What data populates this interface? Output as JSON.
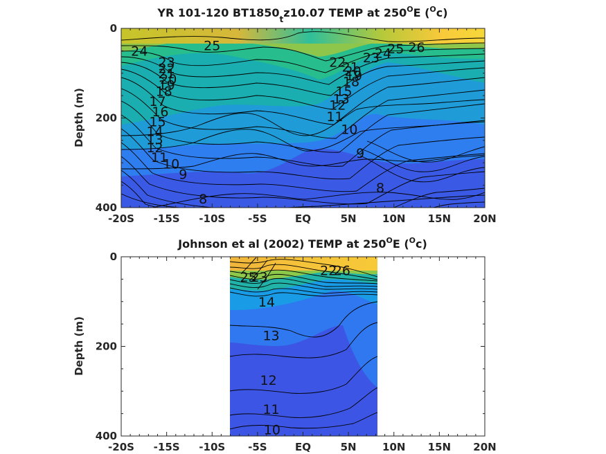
{
  "chart_data": [
    {
      "type": "contour",
      "title_main": "YR 101-120 BT1850",
      "title_sub": "t",
      "title_rest": "z10.07 TEMP at 250",
      "title_deg": "O",
      "title_end": "E (",
      "title_deg2": "O",
      "title_close": "c)",
      "ylabel": "Depth (m)",
      "xlabel": "",
      "x_ticks": [
        "-20S",
        "-15S",
        "-10S",
        "-5S",
        "EQ",
        "5N",
        "10N",
        "15N",
        "20N"
      ],
      "x_tick_values": [
        -20,
        -15,
        -10,
        -5,
        0,
        5,
        10,
        15,
        20
      ],
      "y_ticks": [
        "0",
        "200",
        "400"
      ],
      "y_tick_values": [
        0,
        200,
        400
      ],
      "xlim": [
        -20,
        20
      ],
      "ylim": [
        0,
        400
      ],
      "data_extent": [
        -20,
        20
      ],
      "contour_labels": [
        {
          "text": "25",
          "lat": -10,
          "depth": 38
        },
        {
          "text": "24",
          "lat": -18,
          "depth": 50
        },
        {
          "text": "23",
          "lat": -15,
          "depth": 75
        },
        {
          "text": "22",
          "lat": -15,
          "depth": 89
        },
        {
          "text": "21",
          "lat": -15,
          "depth": 100
        },
        {
          "text": "20",
          "lat": -14.8,
          "depth": 113
        },
        {
          "text": "19",
          "lat": -15,
          "depth": 126
        },
        {
          "text": "18",
          "lat": -15.3,
          "depth": 140
        },
        {
          "text": "17",
          "lat": -16,
          "depth": 162
        },
        {
          "text": "16",
          "lat": -15.7,
          "depth": 185
        },
        {
          "text": "15",
          "lat": -16,
          "depth": 208
        },
        {
          "text": "14",
          "lat": -16.3,
          "depth": 229
        },
        {
          "text": "13",
          "lat": -16.3,
          "depth": 247
        },
        {
          "text": "12",
          "lat": -16.3,
          "depth": 266
        },
        {
          "text": "11",
          "lat": -15.8,
          "depth": 287
        },
        {
          "text": "10",
          "lat": -14.5,
          "depth": 302
        },
        {
          "text": "9",
          "lat": -13.2,
          "depth": 325
        },
        {
          "text": "8",
          "lat": -11,
          "depth": 380
        },
        {
          "text": "22",
          "lat": 3.8,
          "depth": 75
        },
        {
          "text": "23",
          "lat": 7.5,
          "depth": 65
        },
        {
          "text": "24",
          "lat": 8.8,
          "depth": 55
        },
        {
          "text": "25",
          "lat": 10.2,
          "depth": 45
        },
        {
          "text": "26",
          "lat": 12.5,
          "depth": 42
        },
        {
          "text": "21",
          "lat": 5.2,
          "depth": 86
        },
        {
          "text": "20",
          "lat": 5.5,
          "depth": 95
        },
        {
          "text": "19",
          "lat": 5.6,
          "depth": 105
        },
        {
          "text": "18",
          "lat": 5.3,
          "depth": 118
        },
        {
          "text": "15",
          "lat": 4.5,
          "depth": 140
        },
        {
          "text": "13",
          "lat": 4.2,
          "depth": 157
        },
        {
          "text": "12",
          "lat": 3.8,
          "depth": 171
        },
        {
          "text": "11",
          "lat": 3.5,
          "depth": 196
        },
        {
          "text": "10",
          "lat": 5.1,
          "depth": 225
        },
        {
          "text": "9",
          "lat": 6.3,
          "depth": 278
        },
        {
          "text": "8",
          "lat": 8.5,
          "depth": 355
        }
      ]
    },
    {
      "type": "contour",
      "title_main": "Johnson et al (2002) TEMP at 250",
      "title_deg": "O",
      "title_end": "E (",
      "title_deg2": "O",
      "title_close": "c)",
      "ylabel": "Depth (m)",
      "xlabel": "",
      "x_ticks": [
        "-20S",
        "-15S",
        "-10S",
        "-5S",
        "EQ",
        "5N",
        "10N",
        "15N",
        "20N"
      ],
      "x_tick_values": [
        -20,
        -15,
        -10,
        -5,
        0,
        5,
        10,
        15,
        20
      ],
      "y_ticks": [
        "0",
        "200",
        "400"
      ],
      "y_tick_values": [
        0,
        200,
        400
      ],
      "xlim": [
        -20,
        20
      ],
      "ylim": [
        0,
        400
      ],
      "data_extent": [
        -8,
        8
      ],
      "contour_labels": [
        {
          "text": "25",
          "lat": -6,
          "depth": 45
        },
        {
          "text": "23",
          "lat": -4.8,
          "depth": 45
        },
        {
          "text": "22",
          "lat": 2.8,
          "depth": 30
        },
        {
          "text": "26",
          "lat": 4.3,
          "depth": 30
        },
        {
          "text": "14",
          "lat": -4,
          "depth": 100
        },
        {
          "text": "13",
          "lat": -3.5,
          "depth": 175
        },
        {
          "text": "12",
          "lat": -3.8,
          "depth": 275
        },
        {
          "text": "11",
          "lat": -3.5,
          "depth": 340
        },
        {
          "text": "10",
          "lat": -3.4,
          "depth": 385
        }
      ]
    }
  ]
}
